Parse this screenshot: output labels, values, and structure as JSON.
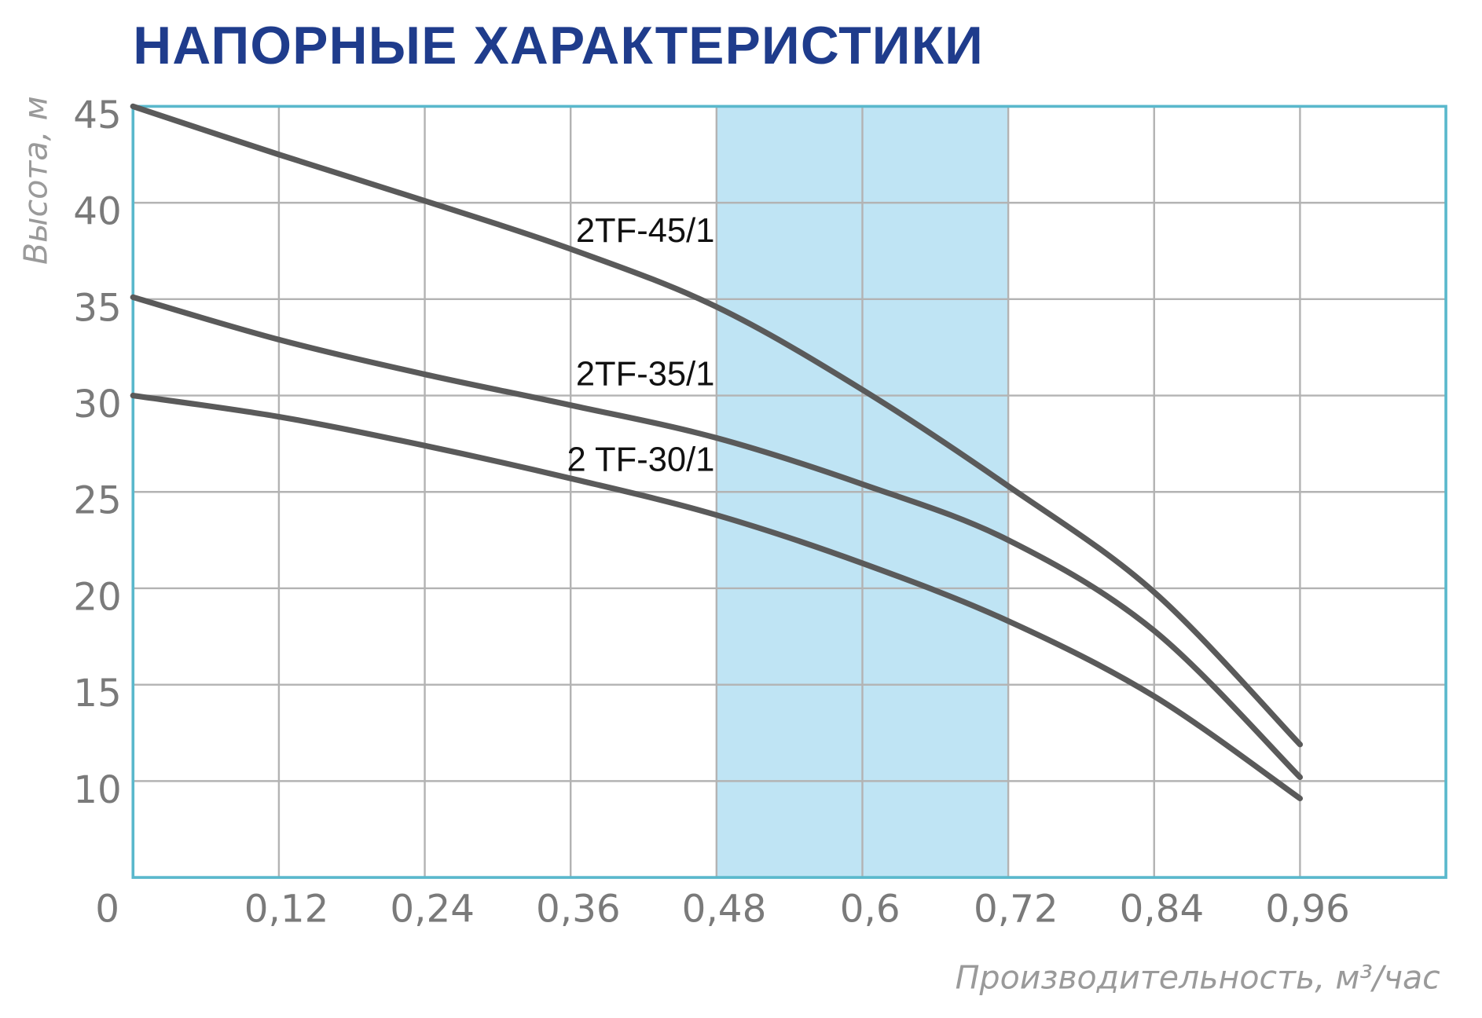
{
  "chart_data": {
    "type": "line",
    "title": "НАПОРНЫЕ ХАРАКТЕРИСТИКИ",
    "y_label": "Высота, м",
    "x_label": "Производительность, м³/час",
    "x": [
      0,
      0.12,
      0.24,
      0.36,
      0.48,
      0.6,
      0.72,
      0.84,
      0.96
    ],
    "series": [
      {
        "name": "2TF-45/1",
        "color": "#5a5a5a",
        "values": [
          45.0,
          42.5,
          40.1,
          37.6,
          34.6,
          30.3,
          25.3,
          19.8,
          11.9
        ]
      },
      {
        "name": "2TF-35/1",
        "color": "#5a5a5a",
        "values": [
          35.1,
          32.9,
          31.1,
          29.5,
          27.8,
          25.4,
          22.5,
          17.8,
          10.2
        ]
      },
      {
        "name": "2 TF-30/1",
        "color": "#5a5a5a",
        "values": [
          30.0,
          28.9,
          27.4,
          25.7,
          23.8,
          21.3,
          18.3,
          14.4,
          9.1
        ]
      }
    ],
    "shaded_range": [
      0.48,
      0.72
    ],
    "shaded_color": "#bfe4f4",
    "frame_color": "#5ab8cc",
    "grid": true,
    "xlim": [
      0,
      1.08
    ],
    "ylim": [
      5,
      45
    ],
    "xticks": [
      0,
      {
        "value": 0.12,
        "label": "0,12"
      },
      {
        "value": 0.24,
        "label": "0,24"
      },
      {
        "value": 0.36,
        "label": "0,36"
      },
      {
        "value": 0.48,
        "label": "0,48"
      },
      {
        "value": 0.6,
        "label": "0,6"
      },
      {
        "value": 0.72,
        "label": "0,72"
      },
      {
        "value": 0.84,
        "label": "0,84"
      },
      {
        "value": 0.96,
        "label": "0,96"
      }
    ],
    "yticks": [
      10,
      15,
      20,
      25,
      30,
      35,
      40,
      45
    ]
  }
}
